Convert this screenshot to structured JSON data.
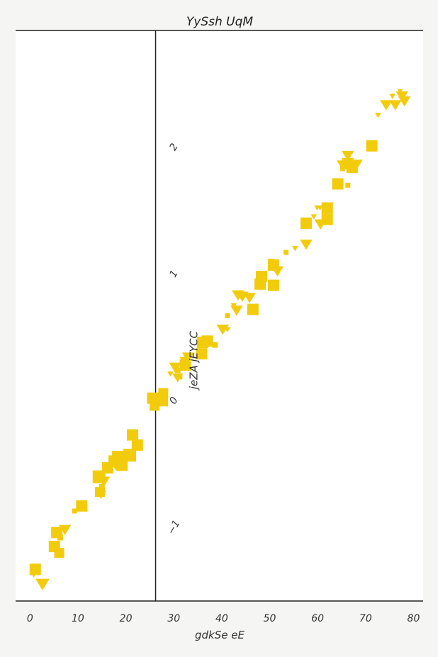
{
  "chart_data": {
    "type": "scatter",
    "title": "YySsh UqM",
    "xlabel": "gdkSe eE",
    "ylabel": "jeZA jEYCC",
    "xlim": [
      -3,
      82
    ],
    "ylim": [
      -1.58,
      2.92
    ],
    "x_ticks": [
      "0",
      "10",
      "20",
      "30",
      "40",
      "50",
      "60",
      "70",
      "80"
    ],
    "y_ticks": [
      "−1",
      "0",
      "1",
      "2"
    ],
    "y_axis_at_x": 26.2,
    "marker_color": "#f2cc0c",
    "series": [
      {
        "name": "squares",
        "marker": "square",
        "points": [
          [
            1.1,
            -1.33,
            16
          ],
          [
            6.1,
            -1.2,
            14
          ],
          [
            5.1,
            -1.15,
            16
          ],
          [
            6.3,
            -1.08,
            8
          ],
          [
            5.6,
            -1.04,
            16
          ],
          [
            9.3,
            -0.87,
            7
          ],
          [
            10.8,
            -0.83,
            16
          ],
          [
            14.6,
            -0.72,
            14
          ],
          [
            15,
            -0.68,
            8
          ],
          [
            14.4,
            -0.6,
            18
          ],
          [
            16.2,
            -0.53,
            16
          ],
          [
            19.2,
            -0.51,
            16
          ],
          [
            17.4,
            -0.47,
            14
          ],
          [
            18.3,
            -0.44,
            16
          ],
          [
            20.8,
            -0.43,
            18
          ],
          [
            19.6,
            -0.44,
            14
          ],
          [
            22.4,
            -0.35,
            16
          ],
          [
            21.4,
            -0.27,
            16
          ],
          [
            26,
            -0.04,
            14
          ],
          [
            25.6,
            0.02,
            16
          ],
          [
            27.6,
            0,
            16
          ],
          [
            27.8,
            0.06,
            14
          ],
          [
            31.2,
            0.19,
            8
          ],
          [
            30.8,
            0.24,
            8
          ],
          [
            32.4,
            0.28,
            16
          ],
          [
            35.8,
            0.37,
            16
          ],
          [
            38.6,
            0.44,
            8
          ],
          [
            36,
            0.46,
            16
          ],
          [
            37,
            0.47,
            16
          ],
          [
            41.2,
            0.67,
            7
          ],
          [
            46.5,
            0.72,
            16
          ],
          [
            48,
            0.92,
            16
          ],
          [
            48.3,
            0.98,
            16
          ],
          [
            50.8,
            0.91,
            16
          ],
          [
            50.8,
            1.07,
            16
          ],
          [
            53.4,
            1.17,
            7
          ],
          [
            57.6,
            1.4,
            16
          ],
          [
            62,
            1.43,
            16
          ],
          [
            62,
            1.52,
            16
          ],
          [
            66.3,
            1.7,
            7
          ],
          [
            64.2,
            1.71,
            16
          ],
          [
            65.2,
            1.83,
            7
          ],
          [
            67.2,
            1.84,
            16
          ],
          [
            66.3,
            1.87,
            16
          ],
          [
            71.3,
            2.01,
            16
          ]
        ]
      },
      {
        "name": "triangles",
        "marker": "triangle-down",
        "points": [
          [
            0.8,
            -1.37,
            10
          ],
          [
            2.6,
            -1.45,
            18
          ],
          [
            7.3,
            -1.02,
            16
          ],
          [
            14.8,
            -0.74,
            14
          ],
          [
            15.4,
            -0.64,
            16
          ],
          [
            17.9,
            -0.51,
            16
          ],
          [
            18.2,
            -0.48,
            14
          ],
          [
            29.3,
            0.21,
            8
          ],
          [
            30.3,
            0.26,
            16
          ],
          [
            30.8,
            0.18,
            14
          ],
          [
            32.3,
            0.31,
            14
          ],
          [
            33,
            0.34,
            16
          ],
          [
            40.2,
            0.56,
            16
          ],
          [
            41.2,
            0.56,
            8
          ],
          [
            42.5,
            0.75,
            8
          ],
          [
            43.1,
            0.71,
            16
          ],
          [
            44.3,
            0.82,
            16
          ],
          [
            43.4,
            0.83,
            16
          ],
          [
            45.8,
            0.81,
            16
          ],
          [
            50.3,
            1.1,
            8
          ],
          [
            51.6,
            1.02,
            16
          ],
          [
            55.3,
            1.2,
            8
          ],
          [
            57.6,
            1.23,
            16
          ],
          [
            59.2,
            1.45,
            8
          ],
          [
            59.9,
            1.52,
            8
          ],
          [
            60.6,
            1.39,
            16
          ],
          [
            60.5,
            1.52,
            8
          ],
          [
            65.1,
            1.86,
            14
          ],
          [
            66.3,
            1.93,
            16
          ],
          [
            68.1,
            1.86,
            16
          ],
          [
            72.6,
            2.25,
            8
          ],
          [
            74.3,
            2.33,
            16
          ],
          [
            76.2,
            2.33,
            16
          ],
          [
            75.6,
            2.4,
            8
          ],
          [
            77.6,
            2.4,
            16
          ],
          [
            78.1,
            2.36,
            16
          ],
          [
            77.2,
            2.44,
            7
          ]
        ]
      }
    ]
  }
}
